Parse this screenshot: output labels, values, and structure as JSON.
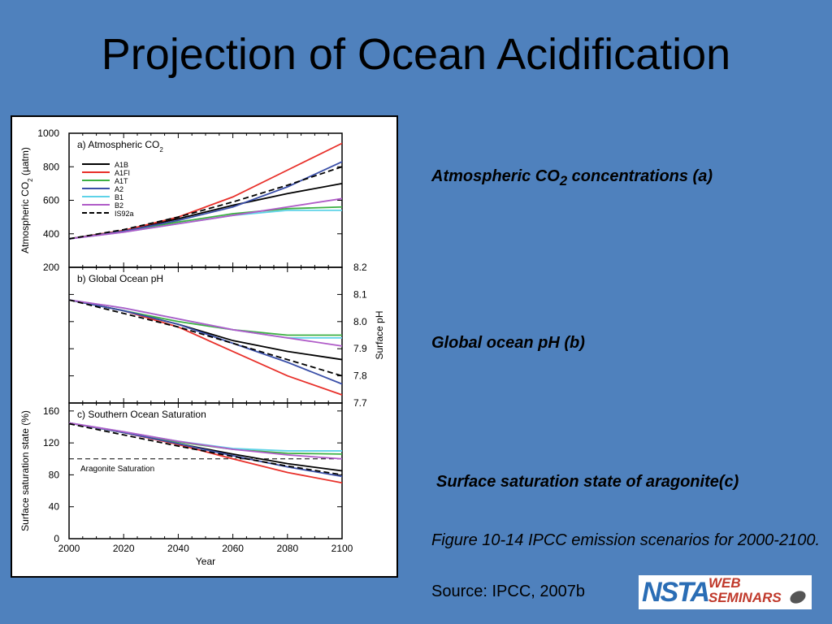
{
  "slide": {
    "title": "Projection of Ocean Acidification",
    "captions": {
      "a_main": "Atmospheric CO",
      "a_sub": "2",
      "a_rest": " concentrations (a)",
      "b": "Global ocean pH (b)",
      "c": "Surface saturation state of aragonite(c)"
    },
    "figure_note": "Figure 10-14  IPCC emission scenarios for 2000-2100.",
    "source": "Source: IPCC, 2007b",
    "logo": {
      "brand": "NSTA",
      "line1": "WEB",
      "line2": "SEMINARS"
    }
  },
  "chart_data": [
    {
      "type": "line",
      "title": "a) Atmospheric CO",
      "title_sub": "2",
      "ylabel": "Atmospheric CO",
      "ylabel_sub": "2",
      "ylabel_unit": " (µatm)",
      "ylim": [
        200,
        1000
      ],
      "yticks": [
        200,
        400,
        600,
        800,
        1000
      ],
      "x": [
        2000,
        2020,
        2040,
        2060,
        2080,
        2100
      ],
      "series": [
        {
          "name": "A1B",
          "color": "#000000",
          "dash": false,
          "values": [
            370,
            420,
            490,
            570,
            640,
            700
          ]
        },
        {
          "name": "A1FI",
          "color": "#e8302a",
          "dash": false,
          "values": [
            370,
            420,
            500,
            620,
            780,
            940
          ]
        },
        {
          "name": "A1T",
          "color": "#3cb043",
          "dash": false,
          "values": [
            370,
            415,
            470,
            520,
            550,
            560
          ]
        },
        {
          "name": "A2",
          "color": "#3a4fa8",
          "dash": false,
          "values": [
            370,
            415,
            480,
            560,
            680,
            830
          ]
        },
        {
          "name": "B1",
          "color": "#5ed3e8",
          "dash": false,
          "values": [
            370,
            410,
            460,
            510,
            540,
            540
          ]
        },
        {
          "name": "B2",
          "color": "#b05cc8",
          "dash": false,
          "values": [
            370,
            410,
            460,
            510,
            560,
            610
          ]
        },
        {
          "name": "IS92a",
          "color": "#000000",
          "dash": true,
          "values": [
            370,
            425,
            500,
            590,
            690,
            800
          ]
        }
      ]
    },
    {
      "type": "line",
      "title": "b) Global Ocean pH",
      "ylabel": "Surface pH",
      "ylim": [
        7.7,
        8.2
      ],
      "yticks": [
        7.7,
        7.8,
        7.9,
        8.0,
        8.1,
        8.2
      ],
      "x": [
        2000,
        2020,
        2040,
        2060,
        2080,
        2100
      ],
      "series": [
        {
          "name": "A1B",
          "values": [
            8.08,
            8.04,
            7.99,
            7.93,
            7.89,
            7.86
          ]
        },
        {
          "name": "A1FI",
          "values": [
            8.08,
            8.04,
            7.98,
            7.89,
            7.8,
            7.73
          ]
        },
        {
          "name": "A1T",
          "values": [
            8.08,
            8.04,
            8.0,
            7.97,
            7.95,
            7.95
          ]
        },
        {
          "name": "A2",
          "values": [
            8.08,
            8.04,
            7.99,
            7.92,
            7.85,
            7.77
          ]
        },
        {
          "name": "B1",
          "values": [
            8.08,
            8.05,
            8.01,
            7.97,
            7.94,
            7.94
          ]
        },
        {
          "name": "B2",
          "values": [
            8.08,
            8.05,
            8.01,
            7.97,
            7.94,
            7.91
          ]
        },
        {
          "name": "IS92a",
          "values": [
            8.08,
            8.03,
            7.98,
            7.92,
            7.86,
            7.8
          ]
        }
      ]
    },
    {
      "type": "line",
      "title": "c) Southern Ocean Saturation",
      "ylabel": "Surface saturation state (%)",
      "xlabel": "Year",
      "ylim": [
        0,
        170
      ],
      "yticks": [
        0,
        40,
        80,
        120,
        160
      ],
      "xticks": [
        2000,
        2020,
        2040,
        2060,
        2080,
        2100
      ],
      "threshold": {
        "label": "Aragonite Saturation",
        "value": 100
      },
      "x": [
        2000,
        2020,
        2040,
        2060,
        2080,
        2100
      ],
      "series": [
        {
          "name": "A1B",
          "values": [
            145,
            133,
            119,
            106,
            94,
            85
          ]
        },
        {
          "name": "A1FI",
          "values": [
            145,
            133,
            118,
            100,
            83,
            70
          ]
        },
        {
          "name": "A1T",
          "values": [
            145,
            133,
            121,
            112,
            107,
            106
          ]
        },
        {
          "name": "A2",
          "values": [
            145,
            133,
            119,
            104,
            90,
            78
          ]
        },
        {
          "name": "B1",
          "values": [
            145,
            134,
            122,
            113,
            110,
            110
          ]
        },
        {
          "name": "B2",
          "values": [
            145,
            134,
            122,
            112,
            105,
            100
          ]
        },
        {
          "name": "IS92a",
          "values": [
            144,
            130,
            116,
            103,
            91,
            80
          ]
        }
      ]
    }
  ]
}
